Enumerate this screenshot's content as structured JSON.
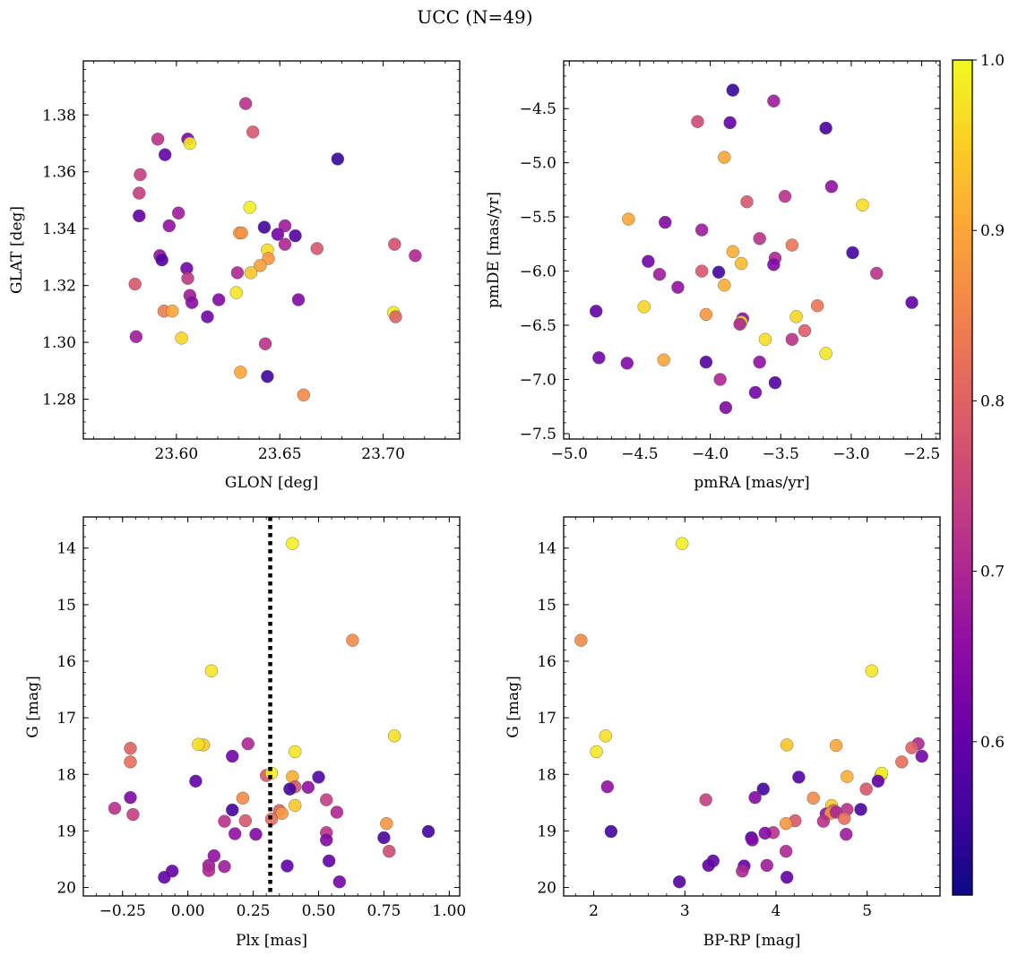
{
  "figure_title": "UCC (N=49)",
  "colorbar": {
    "min": 0.51,
    "max": 1.0,
    "ticks": [
      0.6,
      0.7,
      0.8,
      0.9,
      1.0
    ],
    "tick_labels": [
      "0.6",
      "0.7",
      "0.8",
      "0.9",
      "1.0"
    ],
    "colormap": "plasma"
  },
  "chart_data": [
    {
      "type": "scatter",
      "name": "galactic-coordinates",
      "title": "",
      "xlabel": "GLON [deg]",
      "ylabel": "GLAT [deg]",
      "xlim": [
        23.555,
        23.737
      ],
      "ylim": [
        1.266,
        1.399
      ],
      "xticks": [
        23.6,
        23.65,
        23.7
      ],
      "xtick_labels": [
        "23.60",
        "23.65",
        "23.70"
      ],
      "yticks": [
        1.28,
        1.3,
        1.32,
        1.34,
        1.36,
        1.38
      ],
      "ytick_labels": [
        "1.28",
        "1.30",
        "1.32",
        "1.34",
        "1.36",
        "1.38"
      ],
      "inverted_y": false,
      "points": [
        {
          "x": 23.6335,
          "y": 1.384,
          "c": 0.72
        },
        {
          "x": 23.637,
          "y": 1.374,
          "c": 0.78
        },
        {
          "x": 23.591,
          "y": 1.3715,
          "c": 0.72
        },
        {
          "x": 23.6055,
          "y": 1.3715,
          "c": 0.64
        },
        {
          "x": 23.6065,
          "y": 1.37,
          "c": 0.98
        },
        {
          "x": 23.5945,
          "y": 1.366,
          "c": 0.6
        },
        {
          "x": 23.678,
          "y": 1.3645,
          "c": 0.55
        },
        {
          "x": 23.5825,
          "y": 1.359,
          "c": 0.74
        },
        {
          "x": 23.582,
          "y": 1.3525,
          "c": 0.74
        },
        {
          "x": 23.6355,
          "y": 1.3475,
          "c": 0.99
        },
        {
          "x": 23.582,
          "y": 1.3445,
          "c": 0.6
        },
        {
          "x": 23.601,
          "y": 1.3455,
          "c": 0.68
        },
        {
          "x": 23.5965,
          "y": 1.341,
          "c": 0.66
        },
        {
          "x": 23.6425,
          "y": 1.3405,
          "c": 0.56
        },
        {
          "x": 23.6525,
          "y": 1.341,
          "c": 0.68
        },
        {
          "x": 23.6305,
          "y": 1.3385,
          "c": 0.9
        },
        {
          "x": 23.6315,
          "y": 1.3385,
          "c": 0.87
        },
        {
          "x": 23.649,
          "y": 1.338,
          "c": 0.62
        },
        {
          "x": 23.6575,
          "y": 1.3375,
          "c": 0.58
        },
        {
          "x": 23.6525,
          "y": 1.3345,
          "c": 0.7
        },
        {
          "x": 23.7055,
          "y": 1.3345,
          "c": 0.77
        },
        {
          "x": 23.668,
          "y": 1.333,
          "c": 0.78
        },
        {
          "x": 23.644,
          "y": 1.3325,
          "c": 0.97
        },
        {
          "x": 23.7155,
          "y": 1.3305,
          "c": 0.7
        },
        {
          "x": 23.592,
          "y": 1.3305,
          "c": 0.66
        },
        {
          "x": 23.593,
          "y": 1.329,
          "c": 0.58
        },
        {
          "x": 23.6445,
          "y": 1.3295,
          "c": 0.88
        },
        {
          "x": 23.6405,
          "y": 1.327,
          "c": 0.89
        },
        {
          "x": 23.605,
          "y": 1.326,
          "c": 0.62
        },
        {
          "x": 23.636,
          "y": 1.3245,
          "c": 0.94
        },
        {
          "x": 23.6295,
          "y": 1.3245,
          "c": 0.7
        },
        {
          "x": 23.6055,
          "y": 1.3225,
          "c": 0.73
        },
        {
          "x": 23.58,
          "y": 1.3205,
          "c": 0.78
        },
        {
          "x": 23.629,
          "y": 1.3175,
          "c": 0.98
        },
        {
          "x": 23.6065,
          "y": 1.3165,
          "c": 0.68
        },
        {
          "x": 23.6205,
          "y": 1.315,
          "c": 0.64
        },
        {
          "x": 23.659,
          "y": 1.315,
          "c": 0.64
        },
        {
          "x": 23.6075,
          "y": 1.314,
          "c": 0.65
        },
        {
          "x": 23.594,
          "y": 1.311,
          "c": 0.84
        },
        {
          "x": 23.598,
          "y": 1.311,
          "c": 0.9
        },
        {
          "x": 23.705,
          "y": 1.3105,
          "c": 0.99
        },
        {
          "x": 23.706,
          "y": 1.309,
          "c": 0.8
        },
        {
          "x": 23.615,
          "y": 1.309,
          "c": 0.62
        },
        {
          "x": 23.5805,
          "y": 1.302,
          "c": 0.68
        },
        {
          "x": 23.6025,
          "y": 1.3015,
          "c": 0.96
        },
        {
          "x": 23.643,
          "y": 1.2995,
          "c": 0.72
        },
        {
          "x": 23.631,
          "y": 1.2895,
          "c": 0.9
        },
        {
          "x": 23.644,
          "y": 1.288,
          "c": 0.56
        },
        {
          "x": 23.6615,
          "y": 1.2815,
          "c": 0.86
        }
      ]
    },
    {
      "type": "scatter",
      "name": "proper-motions",
      "title": "",
      "xlabel": "pmRA [mas/yr]",
      "ylabel": "pmDE [mas/yr]",
      "xlim": [
        -5.04,
        -2.37
      ],
      "ylim": [
        -7.55,
        -4.06
      ],
      "xticks": [
        -5.0,
        -4.5,
        -4.0,
        -3.5,
        -3.0,
        -2.5
      ],
      "xtick_labels": [
        "−5.0",
        "−4.5",
        "−4.0",
        "−3.5",
        "−3.0",
        "−2.5"
      ],
      "yticks": [
        -4.5,
        -5.0,
        -5.5,
        -6.0,
        -6.5,
        -7.0,
        -7.5
      ],
      "ytick_labels": [
        "−4.5",
        "−5.0",
        "−5.5",
        "−6.0",
        "−6.5",
        "−7.0",
        "−7.5"
      ],
      "inverted_y": false,
      "points": [
        {
          "x": -3.84,
          "y": -4.33,
          "c": 0.55
        },
        {
          "x": -3.55,
          "y": -4.43,
          "c": 0.68
        },
        {
          "x": -4.09,
          "y": -4.62,
          "c": 0.76
        },
        {
          "x": -3.86,
          "y": -4.63,
          "c": 0.6
        },
        {
          "x": -3.18,
          "y": -4.68,
          "c": 0.57
        },
        {
          "x": -3.9,
          "y": -4.95,
          "c": 0.9
        },
        {
          "x": -3.14,
          "y": -5.22,
          "c": 0.66
        },
        {
          "x": -3.47,
          "y": -5.31,
          "c": 0.72
        },
        {
          "x": -3.74,
          "y": -5.36,
          "c": 0.78
        },
        {
          "x": -2.92,
          "y": -5.39,
          "c": 0.97
        },
        {
          "x": -4.58,
          "y": -5.52,
          "c": 0.9
        },
        {
          "x": -4.32,
          "y": -5.55,
          "c": 0.64
        },
        {
          "x": -4.06,
          "y": -5.62,
          "c": 0.68
        },
        {
          "x": -3.65,
          "y": -5.7,
          "c": 0.72
        },
        {
          "x": -3.42,
          "y": -5.76,
          "c": 0.83
        },
        {
          "x": -3.84,
          "y": -5.82,
          "c": 0.91
        },
        {
          "x": -2.99,
          "y": -5.83,
          "c": 0.56
        },
        {
          "x": -3.54,
          "y": -5.88,
          "c": 0.7
        },
        {
          "x": -4.44,
          "y": -5.91,
          "c": 0.62
        },
        {
          "x": -3.78,
          "y": -5.93,
          "c": 0.93
        },
        {
          "x": -3.55,
          "y": -5.94,
          "c": 0.64
        },
        {
          "x": -4.06,
          "y": -6.0,
          "c": 0.78
        },
        {
          "x": -3.94,
          "y": -6.01,
          "c": 0.56
        },
        {
          "x": -2.82,
          "y": -6.02,
          "c": 0.72
        },
        {
          "x": -4.36,
          "y": -6.03,
          "c": 0.68
        },
        {
          "x": -3.9,
          "y": -6.13,
          "c": 0.91
        },
        {
          "x": -4.23,
          "y": -6.15,
          "c": 0.66
        },
        {
          "x": -2.57,
          "y": -6.29,
          "c": 0.6
        },
        {
          "x": -4.47,
          "y": -6.33,
          "c": 0.96
        },
        {
          "x": -3.24,
          "y": -6.32,
          "c": 0.83
        },
        {
          "x": -4.81,
          "y": -6.37,
          "c": 0.6
        },
        {
          "x": -4.03,
          "y": -6.4,
          "c": 0.88
        },
        {
          "x": -3.39,
          "y": -6.42,
          "c": 0.96
        },
        {
          "x": -3.77,
          "y": -6.44,
          "c": 0.66
        },
        {
          "x": -3.78,
          "y": -6.47,
          "c": 0.97
        },
        {
          "x": -3.79,
          "y": -6.49,
          "c": 0.7
        },
        {
          "x": -3.33,
          "y": -6.55,
          "c": 0.79
        },
        {
          "x": -3.61,
          "y": -6.63,
          "c": 0.97
        },
        {
          "x": -3.42,
          "y": -6.63,
          "c": 0.72
        },
        {
          "x": -3.18,
          "y": -6.76,
          "c": 0.98
        },
        {
          "x": -4.79,
          "y": -6.8,
          "c": 0.62
        },
        {
          "x": -4.33,
          "y": -6.82,
          "c": 0.9
        },
        {
          "x": -4.59,
          "y": -6.85,
          "c": 0.64
        },
        {
          "x": -4.03,
          "y": -6.84,
          "c": 0.58
        },
        {
          "x": -3.65,
          "y": -6.84,
          "c": 0.66
        },
        {
          "x": -3.93,
          "y": -7.0,
          "c": 0.7
        },
        {
          "x": -3.54,
          "y": -7.03,
          "c": 0.58
        },
        {
          "x": -3.68,
          "y": -7.12,
          "c": 0.62
        },
        {
          "x": -3.89,
          "y": -7.26,
          "c": 0.64
        }
      ]
    },
    {
      "type": "scatter",
      "name": "parallax-magnitude",
      "title": "",
      "xlabel": "Plx [mas]",
      "ylabel": "G [mag]",
      "xlim": [
        -0.4,
        1.04
      ],
      "ylim": [
        13.45,
        20.15
      ],
      "xticks": [
        -0.25,
        0.0,
        0.25,
        0.5,
        0.75,
        1.0
      ],
      "xtick_labels": [
        "−0.25",
        "0.00",
        "0.25",
        "0.50",
        "0.75",
        "1.00"
      ],
      "yticks": [
        14,
        15,
        16,
        17,
        18,
        19,
        20
      ],
      "ytick_labels": [
        "14",
        "15",
        "16",
        "17",
        "18",
        "19",
        "20"
      ],
      "inverted_y": true,
      "vline": {
        "x": 0.315,
        "style": "dotted"
      },
      "points": [
        {
          "x": 0.4,
          "y": 13.92,
          "c": 0.99
        },
        {
          "x": 0.63,
          "y": 15.63,
          "c": 0.86
        },
        {
          "x": 0.09,
          "y": 16.17,
          "c": 0.98
        },
        {
          "x": 0.79,
          "y": 17.32,
          "c": 0.97
        },
        {
          "x": 0.06,
          "y": 17.48,
          "c": 0.94
        },
        {
          "x": 0.04,
          "y": 17.47,
          "c": 0.97
        },
        {
          "x": 0.23,
          "y": 17.46,
          "c": 0.7
        },
        {
          "x": -0.22,
          "y": 17.54,
          "c": 0.8
        },
        {
          "x": 0.41,
          "y": 17.6,
          "c": 0.98
        },
        {
          "x": 0.17,
          "y": 17.68,
          "c": 0.62
        },
        {
          "x": -0.22,
          "y": 17.78,
          "c": 0.82
        },
        {
          "x": 0.3,
          "y": 18.02,
          "c": 0.78
        },
        {
          "x": 0.32,
          "y": 17.98,
          "c": 0.99
        },
        {
          "x": 0.4,
          "y": 18.04,
          "c": 0.91
        },
        {
          "x": 0.5,
          "y": 18.05,
          "c": 0.58
        },
        {
          "x": 0.03,
          "y": 18.12,
          "c": 0.6
        },
        {
          "x": 0.41,
          "y": 18.22,
          "c": 0.78
        },
        {
          "x": 0.39,
          "y": 18.26,
          "c": 0.56
        },
        {
          "x": 0.46,
          "y": 18.23,
          "c": 0.66
        },
        {
          "x": -0.22,
          "y": 18.41,
          "c": 0.64
        },
        {
          "x": 0.21,
          "y": 18.42,
          "c": 0.86
        },
        {
          "x": 0.53,
          "y": 18.45,
          "c": 0.74
        },
        {
          "x": 0.41,
          "y": 18.55,
          "c": 0.94
        },
        {
          "x": 0.35,
          "y": 18.64,
          "c": 0.8
        },
        {
          "x": -0.28,
          "y": 18.6,
          "c": 0.72
        },
        {
          "x": 0.17,
          "y": 18.63,
          "c": 0.56
        },
        {
          "x": 0.36,
          "y": 18.69,
          "c": 0.88
        },
        {
          "x": 0.57,
          "y": 18.67,
          "c": 0.7
        },
        {
          "x": -0.21,
          "y": 18.71,
          "c": 0.74
        },
        {
          "x": 0.32,
          "y": 18.79,
          "c": 0.82
        },
        {
          "x": 0.14,
          "y": 18.83,
          "c": 0.72
        },
        {
          "x": 0.22,
          "y": 18.82,
          "c": 0.78
        },
        {
          "x": 0.76,
          "y": 18.87,
          "c": 0.88
        },
        {
          "x": 0.92,
          "y": 19.01,
          "c": 0.56
        },
        {
          "x": 0.53,
          "y": 19.03,
          "c": 0.72
        },
        {
          "x": 0.26,
          "y": 19.06,
          "c": 0.64
        },
        {
          "x": 0.18,
          "y": 19.05,
          "c": 0.66
        },
        {
          "x": 0.75,
          "y": 19.12,
          "c": 0.57
        },
        {
          "x": 0.53,
          "y": 19.16,
          "c": 0.64
        },
        {
          "x": 0.77,
          "y": 19.36,
          "c": 0.76
        },
        {
          "x": 0.1,
          "y": 19.44,
          "c": 0.66
        },
        {
          "x": 0.54,
          "y": 19.53,
          "c": 0.6
        },
        {
          "x": 0.08,
          "y": 19.61,
          "c": 0.68
        },
        {
          "x": 0.38,
          "y": 19.62,
          "c": 0.6
        },
        {
          "x": 0.14,
          "y": 19.63,
          "c": 0.68
        },
        {
          "x": 0.08,
          "y": 19.7,
          "c": 0.7
        },
        {
          "x": -0.06,
          "y": 19.71,
          "c": 0.6
        },
        {
          "x": -0.09,
          "y": 19.82,
          "c": 0.6
        },
        {
          "x": 0.58,
          "y": 19.9,
          "c": 0.62
        }
      ]
    },
    {
      "type": "scatter",
      "name": "color-magnitude",
      "title": "",
      "xlabel": "BP-RP [mag]",
      "ylabel": "G [mag]",
      "xlim": [
        1.67,
        5.8
      ],
      "ylim": [
        13.45,
        20.15
      ],
      "xticks": [
        2,
        3,
        4,
        5
      ],
      "xtick_labels": [
        "2",
        "3",
        "4",
        "5"
      ],
      "yticks": [
        14,
        15,
        16,
        17,
        18,
        19,
        20
      ],
      "ytick_labels": [
        "14",
        "15",
        "16",
        "17",
        "18",
        "19",
        "20"
      ],
      "inverted_y": true,
      "points": [
        {
          "x": 2.97,
          "y": 13.92,
          "c": 0.99
        },
        {
          "x": 1.86,
          "y": 15.63,
          "c": 0.86
        },
        {
          "x": 5.05,
          "y": 16.17,
          "c": 0.98
        },
        {
          "x": 2.13,
          "y": 17.32,
          "c": 0.97
        },
        {
          "x": 4.12,
          "y": 17.48,
          "c": 0.94
        },
        {
          "x": 4.66,
          "y": 17.49,
          "c": 0.9
        },
        {
          "x": 5.56,
          "y": 17.46,
          "c": 0.7
        },
        {
          "x": 5.49,
          "y": 17.53,
          "c": 0.8
        },
        {
          "x": 2.03,
          "y": 17.6,
          "c": 0.98
        },
        {
          "x": 5.6,
          "y": 17.68,
          "c": 0.62
        },
        {
          "x": 5.38,
          "y": 17.78,
          "c": 0.82
        },
        {
          "x": 5.15,
          "y": 18.02,
          "c": 0.92
        },
        {
          "x": 5.16,
          "y": 17.98,
          "c": 0.99
        },
        {
          "x": 4.78,
          "y": 18.04,
          "c": 0.91
        },
        {
          "x": 4.25,
          "y": 18.05,
          "c": 0.58
        },
        {
          "x": 5.12,
          "y": 18.12,
          "c": 0.6
        },
        {
          "x": 2.15,
          "y": 18.22,
          "c": 0.66
        },
        {
          "x": 3.86,
          "y": 18.26,
          "c": 0.56
        },
        {
          "x": 4.99,
          "y": 18.26,
          "c": 0.78
        },
        {
          "x": 3.77,
          "y": 18.41,
          "c": 0.64
        },
        {
          "x": 4.41,
          "y": 18.42,
          "c": 0.86
        },
        {
          "x": 3.23,
          "y": 18.45,
          "c": 0.74
        },
        {
          "x": 4.61,
          "y": 18.55,
          "c": 0.94
        },
        {
          "x": 4.63,
          "y": 18.64,
          "c": 0.8
        },
        {
          "x": 4.93,
          "y": 18.62,
          "c": 0.57
        },
        {
          "x": 4.78,
          "y": 18.62,
          "c": 0.72
        },
        {
          "x": 4.55,
          "y": 18.7,
          "c": 0.66
        },
        {
          "x": 4.6,
          "y": 18.69,
          "c": 0.88
        },
        {
          "x": 4.66,
          "y": 18.67,
          "c": 0.7
        },
        {
          "x": 4.75,
          "y": 18.78,
          "c": 0.82
        },
        {
          "x": 4.52,
          "y": 18.83,
          "c": 0.72
        },
        {
          "x": 4.21,
          "y": 18.82,
          "c": 0.78
        },
        {
          "x": 4.11,
          "y": 18.87,
          "c": 0.88
        },
        {
          "x": 2.19,
          "y": 19.01,
          "c": 0.56
        },
        {
          "x": 3.97,
          "y": 19.03,
          "c": 0.72
        },
        {
          "x": 3.88,
          "y": 19.04,
          "c": 0.64
        },
        {
          "x": 4.77,
          "y": 19.06,
          "c": 0.68
        },
        {
          "x": 3.73,
          "y": 19.12,
          "c": 0.57
        },
        {
          "x": 3.74,
          "y": 19.16,
          "c": 0.64
        },
        {
          "x": 4.11,
          "y": 19.36,
          "c": 0.7
        },
        {
          "x": 3.31,
          "y": 19.53,
          "c": 0.6
        },
        {
          "x": 3.9,
          "y": 19.61,
          "c": 0.68
        },
        {
          "x": 3.65,
          "y": 19.62,
          "c": 0.6
        },
        {
          "x": 3.26,
          "y": 19.61,
          "c": 0.6
        },
        {
          "x": 3.63,
          "y": 19.71,
          "c": 0.7
        },
        {
          "x": 4.12,
          "y": 19.82,
          "c": 0.6
        },
        {
          "x": 2.94,
          "y": 19.9,
          "c": 0.58
        }
      ]
    }
  ]
}
